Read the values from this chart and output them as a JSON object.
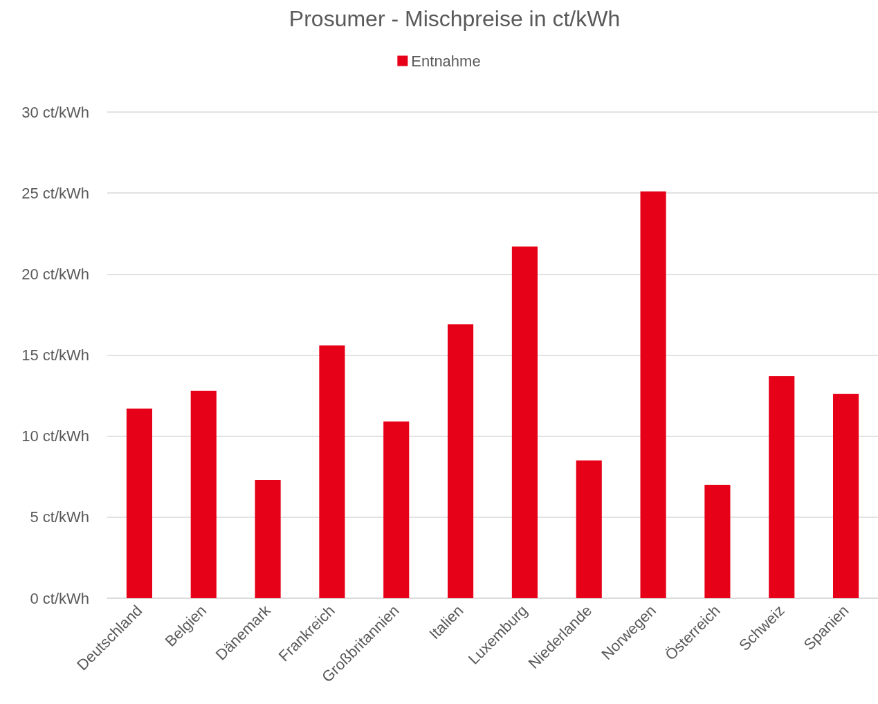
{
  "chart_data": {
    "type": "bar",
    "title": "Prosumer - Mischpreise in ct/kWh",
    "categories": [
      "Deutschland",
      "Belgien",
      "Dänemark",
      "Frankreich",
      "Großbritannien",
      "Italien",
      "Luxemburg",
      "Niederlande",
      "Norwegen",
      "Österreich",
      "Schweiz",
      "Spanien"
    ],
    "series": [
      {
        "name": "Entnahme",
        "color": "#e60018",
        "values": [
          11.7,
          12.8,
          7.3,
          15.6,
          10.9,
          16.9,
          21.7,
          8.5,
          25.1,
          7.0,
          13.7,
          12.6
        ]
      }
    ],
    "ylim": [
      0,
      30
    ],
    "yticks": [
      {
        "value": 0,
        "label": "0 ct/kWh"
      },
      {
        "value": 5,
        "label": "5 ct/kWh"
      },
      {
        "value": 10,
        "label": "10 ct/kWh"
      },
      {
        "value": 15,
        "label": "15 ct/kWh"
      },
      {
        "value": 20,
        "label": "20 ct/kWh"
      },
      {
        "value": 25,
        "label": "25 ct/kWh"
      },
      {
        "value": 30,
        "label": "30 ct/kWh"
      }
    ],
    "grid": "y",
    "legend": "top"
  }
}
